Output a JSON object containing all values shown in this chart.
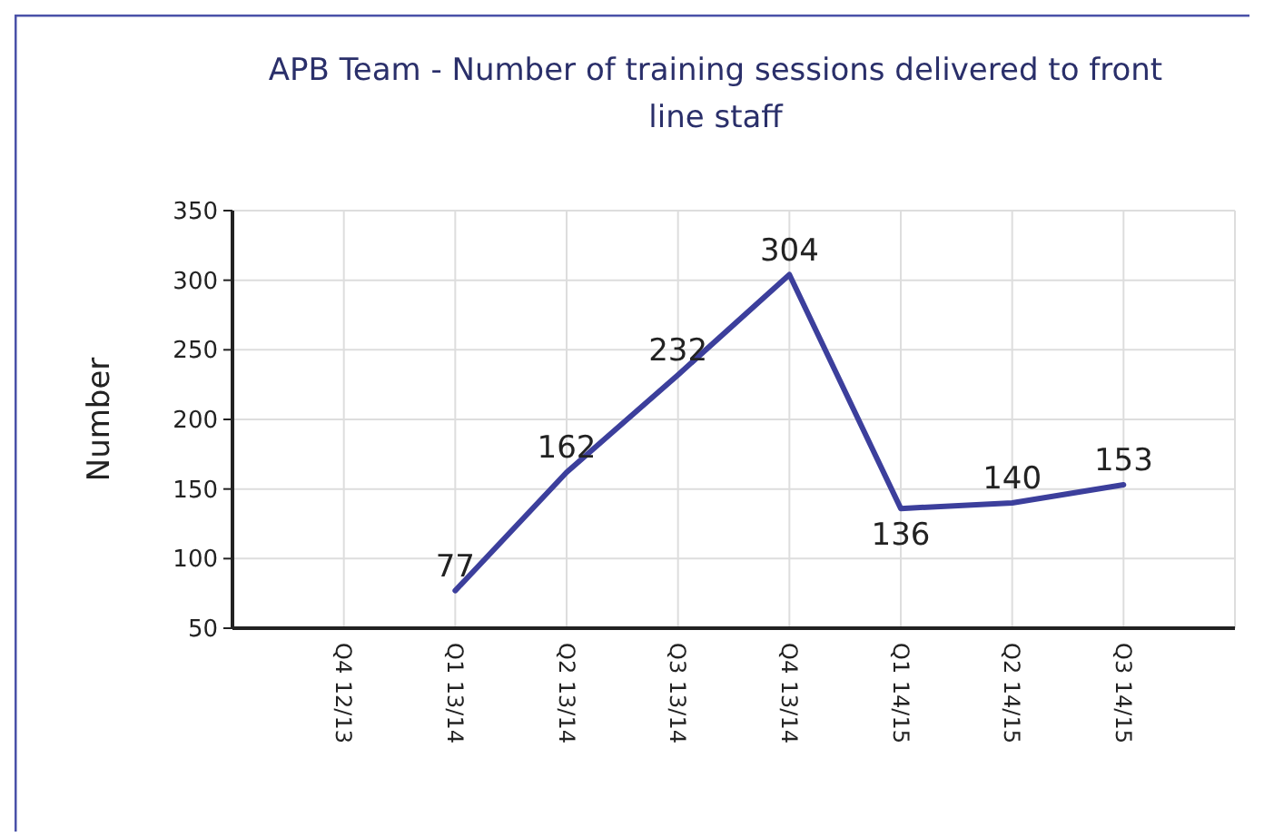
{
  "chart_data": {
    "type": "line",
    "title": "APB Team - Number of training sessions delivered to front line staff",
    "ylabel": "Number",
    "categories": [
      "Q4 12/13",
      "Q1 13/14",
      "Q2 13/14",
      "Q3 13/14",
      "Q4 13/14",
      "Q1 14/15",
      "Q2 14/15",
      "Q3 14/15"
    ],
    "series": [
      {
        "color": "#3c3f9c",
        "values": [
          null,
          77,
          162,
          232,
          304,
          136,
          140,
          153
        ]
      }
    ],
    "ylim": [
      50,
      350
    ],
    "yticks": [
      50,
      100,
      150,
      200,
      250,
      300,
      350
    ],
    "grid": true,
    "data_labels": true,
    "marker": "none",
    "line_style": "solid"
  }
}
